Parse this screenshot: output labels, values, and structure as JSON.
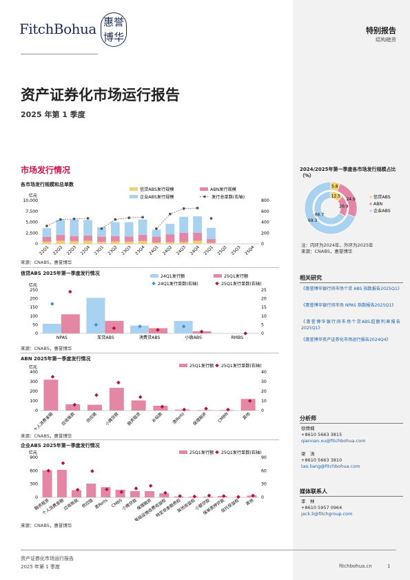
{
  "header": {
    "logo_text": "FitchBohua",
    "seal_line1": "惠誉",
    "seal_line2": "博华",
    "report_type": "特别报告",
    "report_sub": "结构融资"
  },
  "title": "资产证券化市场运行报告",
  "subtitle": "2025 年第 1 季度",
  "section": "市场发行情况",
  "colors": {
    "yellow": "#f2cf70",
    "pink": "#e487a4",
    "lightblue": "#a9d2f0",
    "darkred": "#b5123e",
    "blue": "#3f8fe0",
    "magenta": "#c8194e"
  },
  "chart_data": [
    {
      "type": "bar",
      "title": "各市场发行规模和总单数",
      "ylabel_left": "亿元",
      "categories": [
        "22Q1",
        "22Q2",
        "22Q3",
        "22Q4",
        "23Q1",
        "23Q2",
        "23Q3",
        "23Q4",
        "24Q1",
        "24Q2",
        "24Q3",
        "24Q4",
        "25Q1",
        "25Q2",
        "25Q3",
        "25Q4"
      ],
      "series": [
        {
          "name": "信贷ABS发行规模",
          "values": [
            500,
            700,
            600,
            700,
            450,
            550,
            500,
            650,
            300,
            350,
            400,
            700,
            250,
            0,
            0,
            0
          ]
        },
        {
          "name": "ABN发行规模",
          "values": [
            1100,
            1350,
            1200,
            1200,
            1200,
            1250,
            1200,
            1450,
            1350,
            1850,
            2150,
            1850,
            850,
            0,
            0,
            0
          ]
        },
        {
          "name": "企业ABS发行规模",
          "values": [
            2000,
            3500,
            3800,
            3600,
            2200,
            3200,
            3300,
            3500,
            1600,
            2400,
            3700,
            3800,
            2600,
            0,
            0,
            0
          ]
        },
        {
          "name": "发行总单数(右轴)",
          "values": [
            330,
            450,
            460,
            470,
            280,
            450,
            480,
            490,
            280,
            550,
            650,
            660,
            470,
            null,
            null,
            null
          ]
        }
      ],
      "ylim": [
        0,
        10000
      ],
      "y2lim": [
        0,
        800
      ],
      "yticks": [
        "0",
        "2,500",
        "5,000",
        "7,500",
        "10,000"
      ],
      "y2ticks": [
        "0",
        "200",
        "400",
        "600",
        "800"
      ],
      "source": "来源：CNABS，惠誉博华"
    },
    {
      "type": "bar",
      "title": "信贷ABS 2025年第一季度发行情况",
      "ylabel_left": "亿元",
      "categories": [
        "NPAS",
        "车贷ABS",
        "消费贷ABS",
        "小微ABS",
        "RMBS"
      ],
      "series": [
        {
          "name": "24Q1发行额",
          "values": [
            55,
            205,
            45,
            72,
            0
          ]
        },
        {
          "name": "25Q1发行额",
          "values": [
            110,
            72,
            30,
            12,
            0
          ]
        },
        {
          "name": "24Q1发行单数(右轴)",
          "values": [
            17,
            5,
            4,
            4,
            null
          ]
        },
        {
          "name": "25Q1发行单数(右轴)",
          "values": [
            24,
            3,
            2,
            1,
            0
          ]
        }
      ],
      "ylim": [
        0,
        250
      ],
      "y2lim": [
        0,
        25
      ],
      "yticks": [
        "0",
        "50",
        "100",
        "150",
        "200",
        "250"
      ],
      "y2ticks": [
        "0",
        "5",
        "10",
        "15",
        "20",
        "25"
      ],
      "source": "来源：CNABS，惠誉博华"
    },
    {
      "type": "bar",
      "title": "ABN 2025年第一季度发行情况",
      "ylabel_left": "亿元",
      "categories": [
        "个人消费金融",
        "应收账款",
        "供应链",
        "小微贷款",
        "融资租赁",
        "补贴款",
        "类Reits",
        "保理融资",
        "CMBN",
        "其他"
      ],
      "series": [
        {
          "name": "25Q1发行额",
          "values": [
            320,
            65,
            60,
            235,
            105,
            50,
            10,
            5,
            5,
            120
          ]
        },
        {
          "name": "25Q1发行单数(右轴)",
          "values": [
            35,
            6,
            16,
            29,
            14,
            4,
            1,
            2,
            1,
            10
          ]
        }
      ],
      "ylim": [
        0,
        400
      ],
      "y2lim": [
        0,
        40
      ],
      "yticks": [
        "0",
        "100",
        "200",
        "300",
        "400"
      ],
      "y2ticks": [
        "0",
        "10",
        "20",
        "30",
        "40"
      ],
      "source": "来源：CNABS，惠誉博华"
    },
    {
      "type": "bar",
      "title": "企业ABS 2025年第一季度发行情况",
      "ylabel_left": "亿元",
      "categories": [
        "融资租赁",
        "个人消费金融",
        "应收账款",
        "供应链",
        "类Reits",
        "CMBS",
        "小微贷款",
        "保理融资",
        "基础设施收费收益权",
        "特定非金融债权",
        "其他收益权",
        "小额贷款",
        "保单质押贷款",
        "信托受益权",
        "其他"
      ],
      "series": [
        {
          "name": "25Q1发行额",
          "values": [
            610,
            620,
            160,
            310,
            230,
            170,
            140,
            140,
            90,
            20,
            15,
            15,
            30,
            5,
            40
          ]
        },
        {
          "name": "25Q1发行单数(右轴)",
          "values": [
            60,
            77,
            17,
            59,
            18,
            12,
            20,
            26,
            10,
            3,
            2,
            4,
            3,
            1,
            4
          ]
        }
      ],
      "ylim": [
        0,
        900
      ],
      "y2lim": [
        0,
        90
      ],
      "yticks": [
        "0",
        "300",
        "600",
        "900"
      ],
      "y2ticks": [
        "0",
        "30",
        "60",
        "90"
      ],
      "source": "来源：CNABS，惠誉博华"
    },
    {
      "type": "pie",
      "title": "2024/2025年第一季度各市场发行规模占比（%）",
      "rings": [
        {
          "name": "2024",
          "values": [
            12.5,
            20.9,
            66.7
          ]
        },
        {
          "name": "2025",
          "values": [
            5.8,
            24.9,
            69.3
          ]
        }
      ],
      "categories": [
        "信贷ABS",
        "ABN",
        "企业ABS"
      ],
      "note": "注：内环为2024年，外环为2025年",
      "source": "来源：CNABS，惠誉博华"
    }
  ],
  "sidebar": {
    "related_title": "相关研究",
    "related": [
      "《惠誉博华银行间市场个贷 ABS 指数报告2025Q1》",
      "《惠誉博华银行间市场 NPAS 指数报告2025Q1》",
      "《惠誉博华银行间市场个贷ABS超额利差报告2025Q1》",
      "《惠誉博华资产证券化市场运行报告2024Q4》"
    ],
    "analyst_title": "分析师",
    "analysts": [
      {
        "name": "徐倩楠",
        "phone": "+8610 5663 3815",
        "email": "qiannan.xu@fitchbohua.com"
      },
      {
        "name": "梁　涛",
        "phone": "+8610 5663 3810",
        "email": "tao.liang@fitchbohua.com"
      }
    ],
    "media_title": "媒体联系人",
    "media": {
      "name": "李　林",
      "phone": "+8610 5957 0964",
      "email": "jack.li@fitchgroup.com"
    }
  },
  "footer": {
    "left1": "资产证券化市场运行报告",
    "left2": "2025 年第 1 季度",
    "site": "fitchbohua.cn",
    "page": "1"
  }
}
